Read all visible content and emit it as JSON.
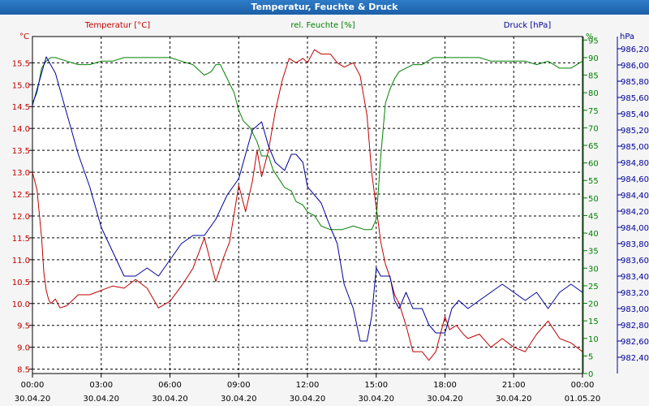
{
  "window": {
    "title": "Temperatur, Feuchte & Druck"
  },
  "chart_data": {
    "type": "line",
    "title": "Temperatur, Feuchte & Druck",
    "colors": {
      "temperature": "#c00000",
      "humidity": "#008000",
      "pressure": "#00009a"
    },
    "axes": {
      "left": {
        "unit": "°C",
        "label": "Temperatur [°C]",
        "ylim": [
          8.4,
          16.1
        ],
        "ticks": [
          "8.5",
          "9.0",
          "9.5",
          "10.0",
          "10.5",
          "11.0",
          "11.5",
          "12.0",
          "12.5",
          "13.0",
          "13.5",
          "14.0",
          "14.5",
          "15.0",
          "15.5"
        ]
      },
      "right1": {
        "unit": "%",
        "label": "rel. Feuchte [%]",
        "ylim": [
          0,
          96
        ],
        "ticks": [
          "0",
          "5",
          "10",
          "15",
          "20",
          "25",
          "30",
          "35",
          "40",
          "45",
          "50",
          "55",
          "60",
          "65",
          "70",
          "75",
          "80",
          "85",
          "90",
          "95"
        ]
      },
      "right2": {
        "unit": "hPa",
        "label": "Druck [hPa]",
        "ylim": [
          982.2,
          986.35
        ],
        "ticks": [
          "982,40",
          "982,60",
          "982,80",
          "983,00",
          "983,20",
          "983,40",
          "983,60",
          "983,80",
          "984,00",
          "984,20",
          "984,40",
          "984,60",
          "984,80",
          "985,00",
          "985,20",
          "985,40",
          "985,60",
          "985,80",
          "986,00",
          "986,20"
        ]
      },
      "x": {
        "range_hours": [
          0,
          24
        ],
        "ticks": [
          {
            "time": "00:00",
            "date": "30.04.20"
          },
          {
            "time": "03:00",
            "date": "30.04.20"
          },
          {
            "time": "06:00",
            "date": "30.04.20"
          },
          {
            "time": "09:00",
            "date": "30.04.20"
          },
          {
            "time": "12:00",
            "date": "30.04.20"
          },
          {
            "time": "15:00",
            "date": "30.04.20"
          },
          {
            "time": "18:00",
            "date": "30.04.20"
          },
          {
            "time": "21:00",
            "date": "30.04.20"
          },
          {
            "time": "00:00",
            "date": "01.05.20"
          }
        ]
      }
    },
    "grid": true,
    "series": [
      {
        "name": "Temperatur [°C]",
        "axis": "left",
        "x": [
          0,
          0.2,
          0.4,
          0.5,
          0.6,
          0.7,
          0.8,
          1.0,
          1.2,
          1.5,
          2.0,
          2.5,
          3.0,
          3.5,
          4.0,
          4.5,
          5.0,
          5.5,
          6.0,
          6.5,
          7.0,
          7.5,
          8.0,
          8.3,
          8.6,
          9.0,
          9.3,
          9.6,
          9.8,
          10.0,
          10.3,
          10.6,
          10.9,
          11.2,
          11.5,
          11.8,
          12.0,
          12.3,
          12.6,
          13.0,
          13.3,
          13.6,
          14.0,
          14.3,
          14.6,
          14.8,
          15.0,
          15.2,
          15.4,
          15.6,
          15.8,
          16.0,
          16.3,
          16.6,
          17.0,
          17.3,
          17.6,
          18.0,
          18.2,
          18.5,
          18.8,
          19.0,
          19.5,
          20.0,
          20.5,
          21.0,
          21.5,
          22.0,
          22.5,
          23.0,
          23.5,
          24.0
        ],
        "values": [
          13.0,
          12.6,
          11.5,
          10.7,
          10.3,
          10.1,
          10.0,
          10.1,
          9.9,
          9.95,
          10.2,
          10.2,
          10.3,
          10.4,
          10.35,
          10.55,
          10.35,
          9.9,
          10.05,
          10.4,
          10.8,
          11.5,
          10.5,
          11.0,
          11.4,
          12.7,
          12.1,
          12.8,
          13.5,
          12.9,
          13.5,
          14.4,
          15.1,
          15.6,
          15.5,
          15.6,
          15.5,
          15.8,
          15.7,
          15.7,
          15.5,
          15.4,
          15.5,
          15.2,
          14.3,
          13.0,
          12.2,
          11.4,
          10.9,
          10.6,
          10.2,
          10.0,
          9.5,
          8.9,
          8.9,
          8.7,
          8.9,
          9.7,
          9.4,
          9.5,
          9.3,
          9.2,
          9.3,
          9.0,
          9.2,
          9.0,
          8.9,
          9.3,
          9.6,
          9.2,
          9.1,
          8.9
        ]
      },
      {
        "name": "rel. Feuchte [%]",
        "axis": "right1",
        "x": [
          0,
          0.2,
          0.4,
          0.6,
          0.8,
          1.0,
          1.5,
          2.0,
          2.5,
          3.0,
          3.5,
          4.0,
          4.5,
          5.0,
          5.5,
          6.0,
          6.5,
          7.0,
          7.5,
          7.8,
          8.0,
          8.2,
          8.5,
          8.8,
          9.0,
          9.2,
          9.5,
          9.8,
          10.0,
          10.3,
          10.5,
          10.8,
          11.0,
          11.3,
          11.5,
          11.8,
          12.0,
          12.3,
          12.6,
          13.0,
          13.5,
          14.0,
          14.5,
          14.8,
          15.0,
          15.2,
          15.4,
          15.6,
          15.8,
          16.0,
          16.3,
          16.6,
          17.0,
          17.5,
          18.0,
          18.5,
          19.0,
          19.5,
          20.0,
          20.5,
          21.0,
          21.5,
          22.0,
          22.5,
          23.0,
          23.5,
          24.0
        ],
        "values": [
          77,
          80,
          87,
          89,
          90,
          90,
          89,
          88,
          88,
          89,
          89,
          90,
          90,
          90,
          90,
          90,
          89,
          88,
          85,
          86,
          88,
          88,
          84,
          80,
          75,
          72,
          70,
          66,
          62,
          62,
          58,
          55,
          53,
          52,
          49,
          48,
          46,
          45,
          42,
          41,
          41,
          42,
          41,
          41,
          44,
          62,
          77,
          81,
          84,
          86,
          87,
          88,
          88,
          90,
          90,
          90,
          90,
          90,
          89,
          89,
          89,
          89,
          88,
          89,
          87,
          87,
          89
        ]
      },
      {
        "name": "Druck [hPa]",
        "axis": "right2",
        "x": [
          0,
          0.2,
          0.4,
          0.6,
          0.8,
          1.0,
          1.3,
          1.6,
          2.0,
          2.5,
          3.0,
          3.5,
          4.0,
          4.5,
          5.0,
          5.5,
          6.0,
          6.5,
          7.0,
          7.5,
          8.0,
          8.5,
          9.0,
          9.3,
          9.6,
          10.0,
          10.3,
          10.6,
          11.0,
          11.3,
          11.5,
          11.8,
          12.0,
          12.3,
          12.6,
          13.0,
          13.3,
          13.6,
          14.0,
          14.3,
          14.6,
          14.8,
          15.0,
          15.2,
          15.4,
          15.6,
          15.8,
          16.0,
          16.3,
          16.6,
          17.0,
          17.3,
          17.6,
          18.0,
          18.3,
          18.6,
          19.0,
          19.5,
          20.0,
          20.5,
          21.0,
          21.5,
          22.0,
          22.5,
          23.0,
          23.5,
          24.0
        ],
        "values": [
          985.5,
          985.7,
          985.9,
          986.1,
          986.0,
          985.9,
          985.6,
          985.3,
          984.9,
          984.5,
          984.0,
          983.7,
          983.4,
          983.4,
          983.5,
          983.4,
          983.6,
          983.8,
          983.9,
          983.9,
          984.1,
          984.4,
          984.6,
          984.9,
          985.2,
          985.3,
          985.0,
          984.8,
          984.7,
          984.9,
          984.9,
          984.8,
          984.5,
          984.4,
          984.3,
          984.0,
          983.8,
          983.3,
          983.0,
          982.6,
          982.6,
          982.9,
          983.5,
          983.4,
          983.4,
          983.4,
          983.1,
          983.0,
          983.2,
          983.0,
          983.0,
          982.8,
          982.7,
          982.7,
          983.0,
          983.1,
          983.0,
          983.1,
          983.2,
          983.3,
          983.2,
          983.1,
          983.2,
          983.0,
          983.2,
          983.3,
          983.2
        ]
      }
    ]
  }
}
